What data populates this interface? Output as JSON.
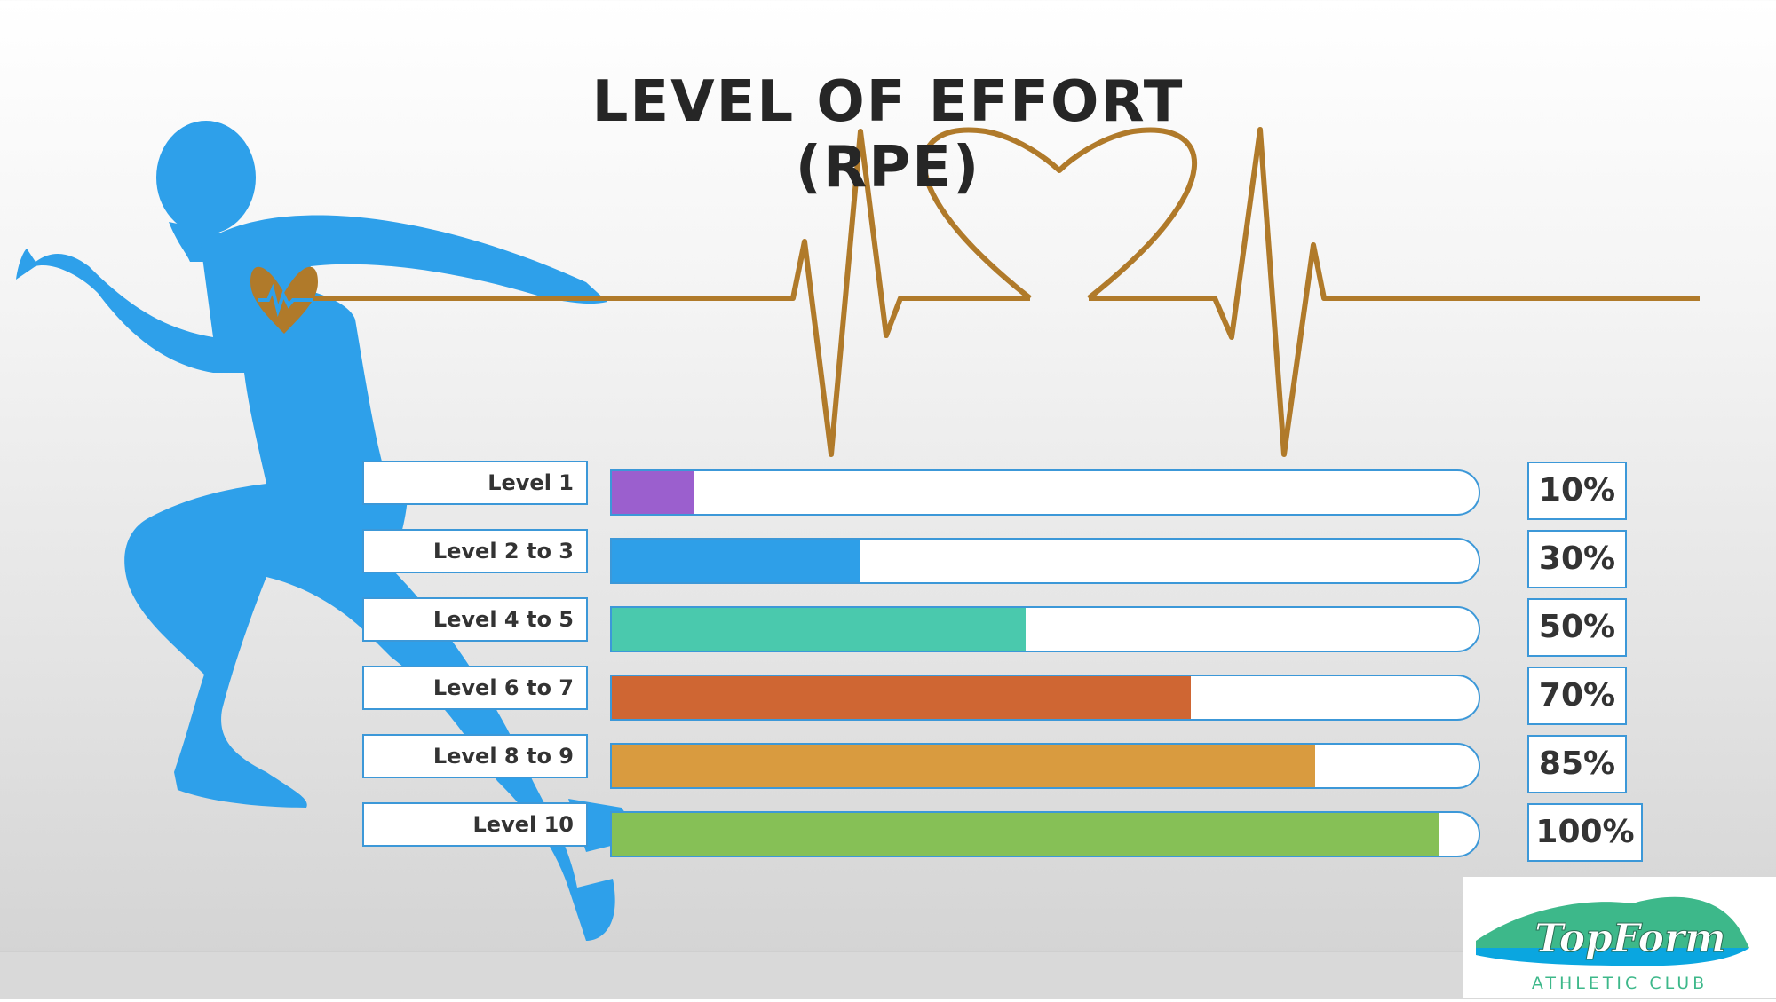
{
  "title": "LEVEL OF EFFORT (RPE)",
  "chart_data": {
    "type": "bar",
    "orientation": "horizontal",
    "categories": [
      "Level 1",
      "Level 2 to 3",
      "Level 4 to 5",
      "Level 6 to 7",
      "Level 8 to 9",
      "Level 10"
    ],
    "values": [
      10,
      30,
      50,
      70,
      85,
      100
    ],
    "value_labels": [
      "10%",
      "30%",
      "50%",
      "70%",
      "85%",
      "100%"
    ],
    "colors": [
      "#9b5fce",
      "#2e9fe8",
      "#4ac9ad",
      "#cf6633",
      "#d99b3f",
      "#86c056"
    ],
    "xlim": [
      0,
      100
    ],
    "grid": false,
    "legend": "none"
  },
  "colors": {
    "accent": "#2ea0ea",
    "heartbeat": "#b07a2a",
    "border": "#3c98d8",
    "logo_green": "#3db88a",
    "logo_blue": "#0aa6e0"
  },
  "logo": {
    "name": "TopForm",
    "tagline": "ATHLETIC CLUB"
  }
}
